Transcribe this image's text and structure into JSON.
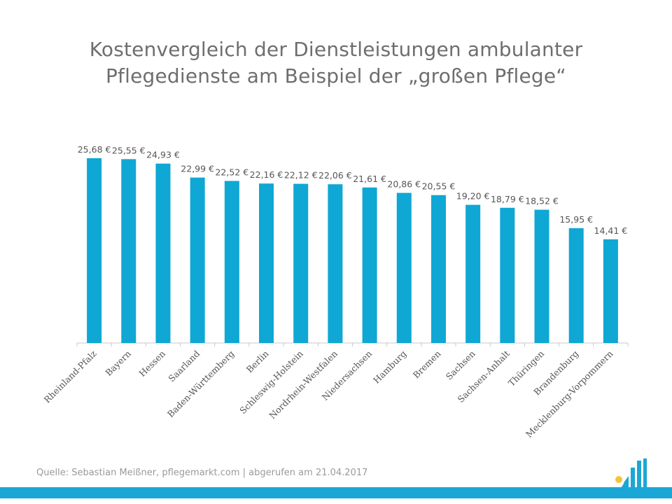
{
  "title_line1": "Kostenvergleich der Dienstleistungen ambulanter",
  "title_line2": "Pflegedienste am Beispiel der „großen Pflege“",
  "footer": "Quelle: Sebastian Meißner, pflegemarkt.com | abgerufen am 21.04.2017",
  "colors": {
    "bar": "#0fa7d4",
    "axis": "#c8c8c8",
    "stripe": "#1aa7d6",
    "logo_dot": "#f7c23a"
  },
  "chart_data": {
    "type": "bar",
    "categories": [
      "Rheinland-Pfalz",
      "Bayern",
      "Hessen",
      "Saarland",
      "Baden-Württemberg",
      "Berlin",
      "Schleswig-Holstein",
      "Nordrhein-Westfalen",
      "Niedersachsen",
      "Hamburg",
      "Bremen",
      "Sachsen",
      "Sachsen-Anhalt",
      "Thüringen",
      "Brandenburg",
      "Mecklenburg-Vorpommern"
    ],
    "values": [
      25.68,
      25.55,
      24.93,
      22.99,
      22.52,
      22.16,
      22.12,
      22.06,
      21.61,
      20.86,
      20.55,
      19.2,
      18.79,
      18.52,
      15.95,
      14.41
    ],
    "data_labels": [
      "25,68 €",
      "25,55 €",
      "24,93 €",
      "22,99 €",
      "22,52 €",
      "22,16 €",
      "22,12 €",
      "22,06 €",
      "21,61 €",
      "20,86 €",
      "20,55 €",
      "19,20 €",
      "18,79 €",
      "18,52 €",
      "15,95 €",
      "14,41 €"
    ],
    "ylim": [
      0,
      25.68
    ],
    "grid": false,
    "legend": "none"
  }
}
